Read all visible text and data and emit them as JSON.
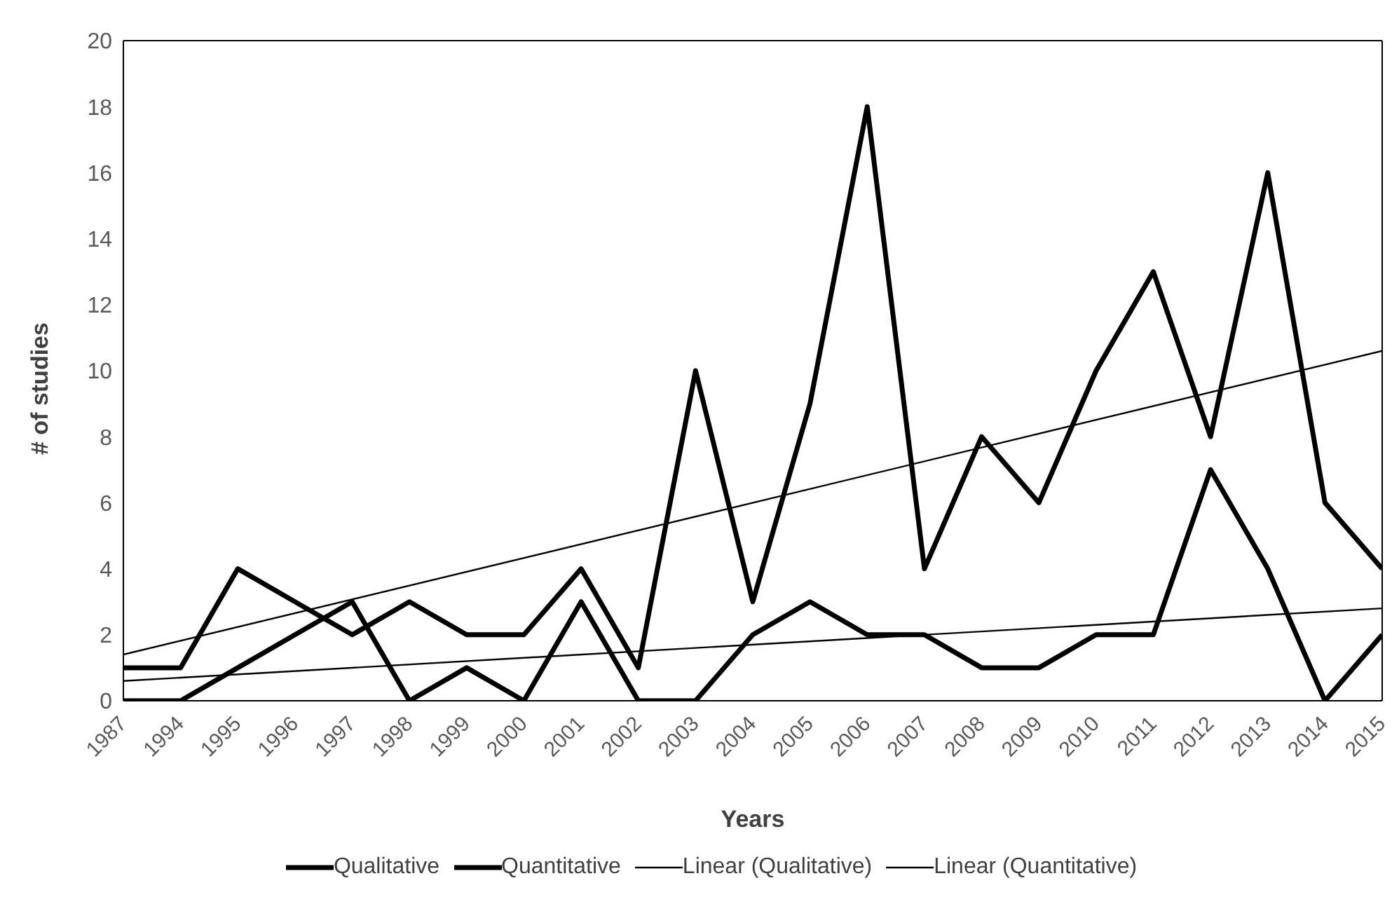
{
  "chart_data": {
    "type": "line",
    "xlabel": "Years",
    "ylabel": "# of studies",
    "categories": [
      "1987",
      "1994",
      "1995",
      "1996",
      "1997",
      "1998",
      "1999",
      "2000",
      "2001",
      "2002",
      "2003",
      "2004",
      "2005",
      "2006",
      "2007",
      "2008",
      "2009",
      "2010",
      "2011",
      "2012",
      "2013",
      "2014",
      "2015"
    ],
    "ylim": [
      0,
      20
    ],
    "yticks": [
      0,
      2,
      4,
      6,
      8,
      10,
      12,
      14,
      16,
      18,
      20
    ],
    "grid": false,
    "legend": "bottom",
    "marker": "none",
    "line_style": "solid",
    "series": [
      {
        "name": "Qualitative",
        "color": "#000000",
        "values": [
          1,
          1,
          4,
          3,
          2,
          3,
          2,
          2,
          4,
          1,
          10,
          3,
          9,
          18,
          4,
          8,
          6,
          10,
          13,
          8,
          16,
          6,
          4
        ]
      },
      {
        "name": "Quantitative",
        "color": "#000000",
        "values": [
          0,
          0,
          1,
          2,
          3,
          0,
          1,
          0,
          3,
          0,
          0,
          2,
          3,
          2,
          2,
          1,
          1,
          2,
          2,
          7,
          4,
          0,
          2
        ]
      },
      {
        "name": "Linear (Qualitative)",
        "type": "line",
        "color": "#000000",
        "values": [
          1.4,
          null,
          null,
          null,
          null,
          null,
          null,
          null,
          null,
          null,
          null,
          null,
          null,
          null,
          null,
          null,
          null,
          null,
          null,
          null,
          null,
          null,
          10.6
        ]
      },
      {
        "name": "Linear (Quantitative)",
        "type": "line",
        "color": "#000000",
        "values": [
          0.6,
          null,
          null,
          null,
          null,
          null,
          null,
          null,
          null,
          null,
          null,
          null,
          null,
          null,
          null,
          null,
          null,
          null,
          null,
          null,
          null,
          null,
          2.8
        ]
      }
    ]
  }
}
